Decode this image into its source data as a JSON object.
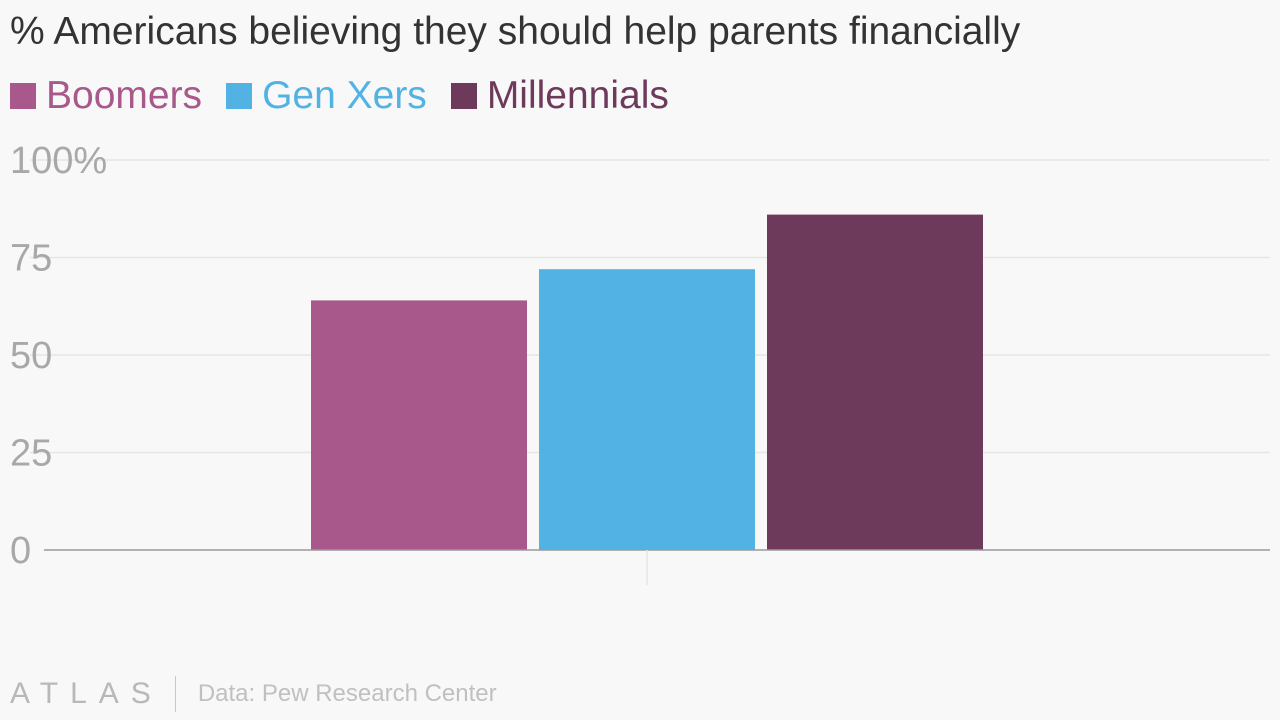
{
  "title": "% Americans believing they should help parents financially",
  "colors": {
    "boomers": "#a8588a",
    "genx": "#53b2e4",
    "millennials": "#6d3a5b",
    "grid": "#e6e6e6",
    "axis": "#999999"
  },
  "footer": {
    "logo": "ATLAS",
    "source": "Data: Pew Research Center"
  },
  "chart_data": {
    "type": "bar",
    "categories": [
      ""
    ],
    "series": [
      {
        "name": "Boomers",
        "values": [
          64
        ]
      },
      {
        "name": "Gen Xers",
        "values": [
          72
        ]
      },
      {
        "name": "Millennials",
        "values": [
          86
        ]
      }
    ],
    "title": "% Americans believing they should help parents financially",
    "xlabel": "",
    "ylabel": "",
    "ylim": [
      0,
      100
    ],
    "yticks": [
      0,
      25,
      50,
      75,
      100
    ],
    "ytick_labels": [
      "0",
      "25",
      "50",
      "75",
      "100%"
    ],
    "grid": true,
    "legend": "top-left"
  }
}
